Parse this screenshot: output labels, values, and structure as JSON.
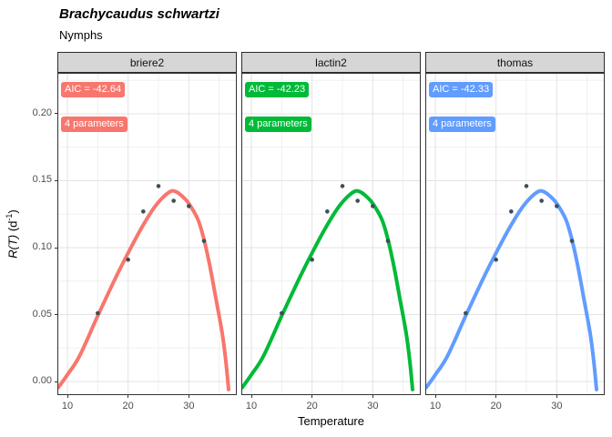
{
  "title": "Brachycaudus schwartzi",
  "subtitle": "Nymphs",
  "x_axis_title": "Temperature",
  "y_axis_title": {
    "math": "R(T)",
    "mid": " (d",
    "sup": "-1",
    "end": ")"
  },
  "chart_data": {
    "type": "line",
    "description": "Faceted thermal performance curves (rate vs temperature) with observed points, one fitted model per facet",
    "facets": [
      {
        "name": "briere2",
        "color": "#F8766D",
        "aic_label": "AIC = -42.64",
        "params_label": "4 parameters"
      },
      {
        "name": "lactin2",
        "color": "#00BA38",
        "aic_label": "AIC = -42.23",
        "params_label": "4 parameters"
      },
      {
        "name": "thomas",
        "color": "#619CFF",
        "aic_label": "AIC = -42.33",
        "params_label": "4 parameters"
      }
    ],
    "xlabel": "Temperature",
    "ylabel": "R(T) (d^-1)",
    "xlim": [
      8.35,
      37.9
    ],
    "ylim": [
      -0.0102,
      0.2306
    ],
    "x_ticks": [
      {
        "label": "10",
        "value": 10
      },
      {
        "label": "20",
        "value": 20
      },
      {
        "label": "30",
        "value": 30
      }
    ],
    "y_ticks": [
      {
        "label": "0.00",
        "value": 0.0
      },
      {
        "label": "0.05",
        "value": 0.05
      },
      {
        "label": "0.10",
        "value": 0.1
      },
      {
        "label": "0.15",
        "value": 0.15
      },
      {
        "label": "0.20",
        "value": 0.2
      }
    ],
    "x_minor": [
      15,
      25,
      35
    ],
    "y_minor": [
      0.025,
      0.075,
      0.125,
      0.175,
      0.225
    ],
    "points": {
      "temperature": [
        15,
        20,
        22.5,
        25,
        27.5,
        30,
        32.5
      ],
      "rate": [
        0.051,
        0.091,
        0.127,
        0.146,
        0.135,
        0.131,
        0.105
      ],
      "color": "#3d4f55"
    },
    "curve": {
      "t": [
        8.5,
        10,
        12,
        15,
        18,
        20,
        22,
        24,
        25.5,
        27,
        28,
        29,
        30,
        31.5,
        32.5,
        33.5,
        34.5,
        35.5,
        36.1,
        36.55
      ],
      "r": [
        -0.0045,
        0.005,
        0.019,
        0.049,
        0.078,
        0.096,
        0.113,
        0.128,
        0.1365,
        0.142,
        0.1415,
        0.138,
        0.133,
        0.121,
        0.106,
        0.0855,
        0.061,
        0.036,
        0.015,
        -0.006
      ]
    },
    "grid": {
      "major_color": "#e3e3e3",
      "minor_color": "#f0f0f0",
      "panel_border": "#333333"
    }
  }
}
